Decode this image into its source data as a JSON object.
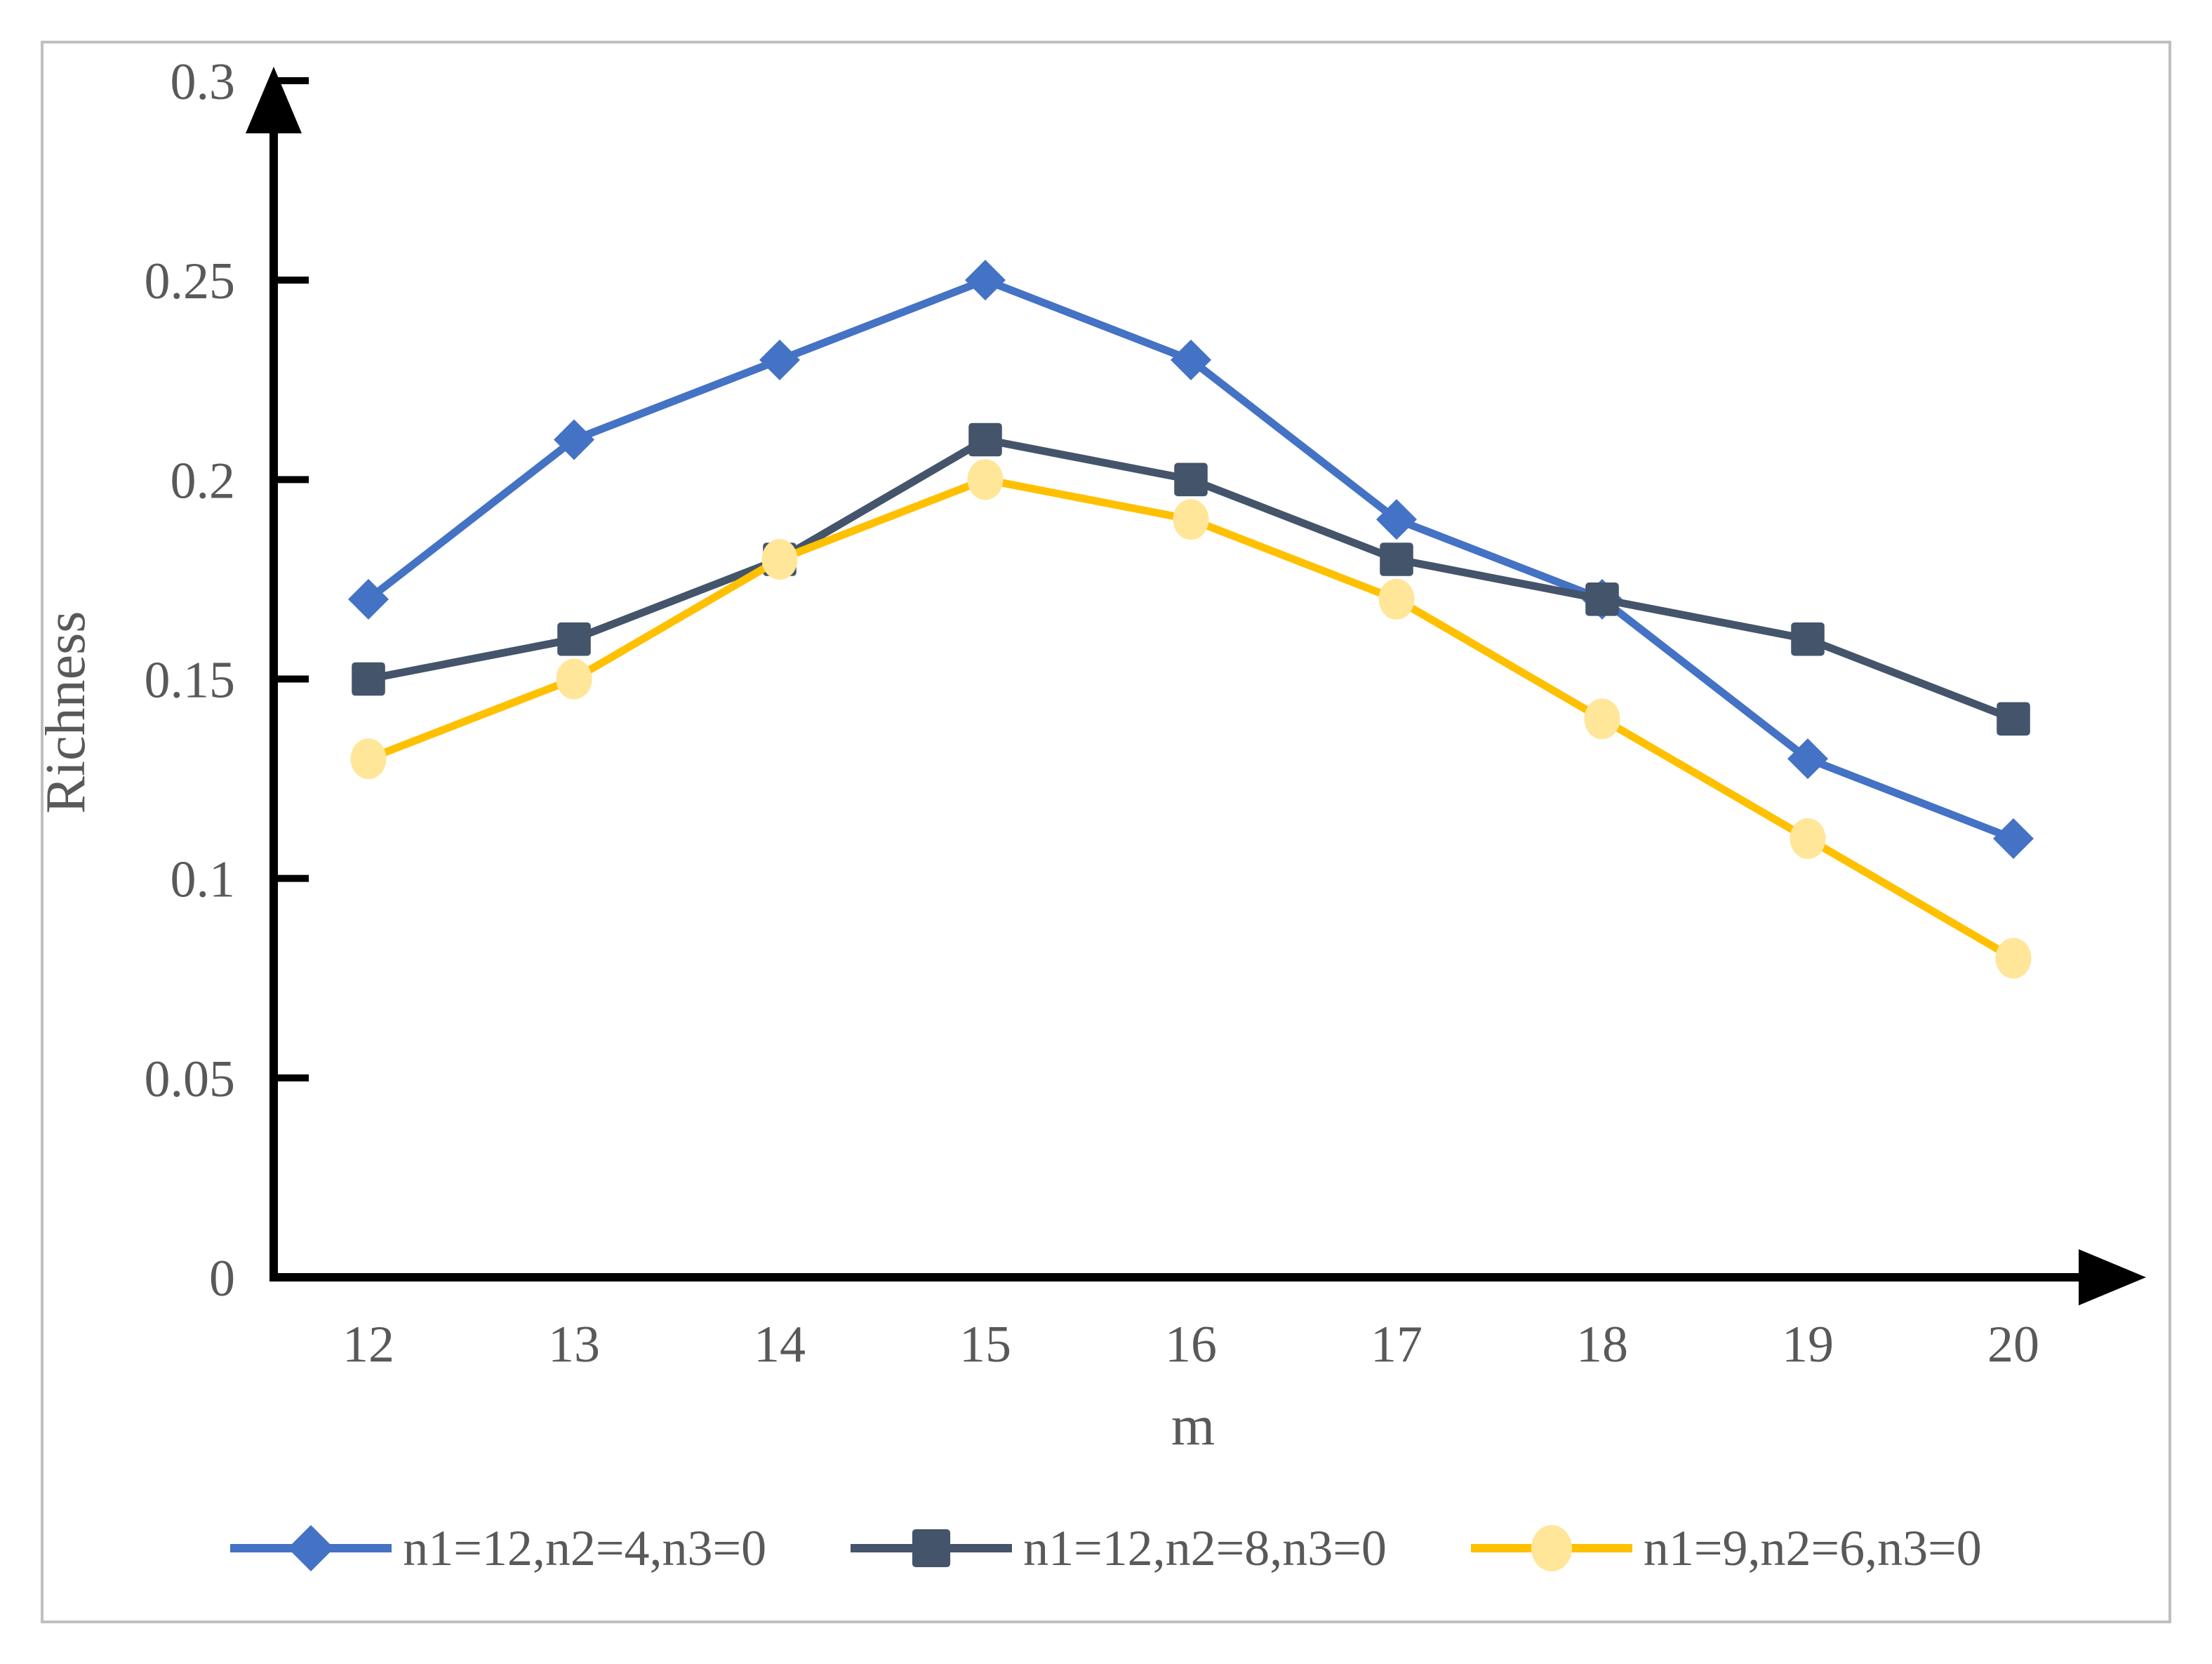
{
  "chart_data": {
    "type": "line",
    "xlabel": "m",
    "ylabel": "Richness",
    "x": [
      12,
      13,
      14,
      15,
      16,
      17,
      18,
      19,
      20
    ],
    "ylim": [
      0,
      0.3
    ],
    "yticks": [
      0,
      0.05,
      0.1,
      0.15,
      0.2,
      0.25,
      0.3
    ],
    "ytick_labels": [
      "0",
      "0.05",
      "0.1",
      "0.15",
      "0.2",
      "0.25",
      "0.3"
    ],
    "grid": false,
    "legend_position": "bottom",
    "series": [
      {
        "name": "n1=12,n2=4,n3=0",
        "marker": "diamond",
        "color": "#4472C4",
        "marker_fill": "#4472C4",
        "values": [
          0.17,
          0.21,
          0.23,
          0.25,
          0.23,
          0.19,
          0.17,
          0.13,
          0.11
        ]
      },
      {
        "name": "n1=12,n2=8,n3=0",
        "marker": "square",
        "color": "#44546A",
        "marker_fill": "#44546A",
        "values": [
          0.15,
          0.16,
          0.18,
          0.21,
          0.2,
          0.18,
          0.17,
          0.16,
          0.14
        ]
      },
      {
        "name": "n1=9,n2=6,n3=0",
        "marker": "circle",
        "color": "#FFC000",
        "marker_fill": "#FFE699",
        "values": [
          0.13,
          0.15,
          0.18,
          0.2,
          0.19,
          0.17,
          0.14,
          0.11,
          0.08
        ]
      }
    ]
  },
  "style": {
    "axis_color": "#000000",
    "text_color": "#595959",
    "frame_border_color": "#BFBFBF",
    "background_color": "#FFFFFF"
  }
}
